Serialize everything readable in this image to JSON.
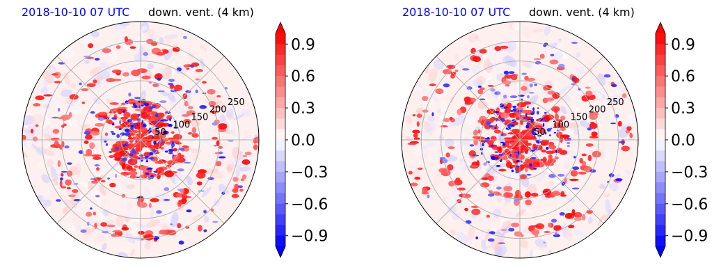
{
  "chart_data": [
    {
      "type": "heatmap",
      "projection": "polar",
      "title_left": "2018-10-10 07 UTC",
      "title_right": "down. vent. (4 km)",
      "radial_ticks": [
        "50",
        "100",
        "150",
        "200",
        "250"
      ],
      "radial_max": 300,
      "colorbar": {
        "range": [
          -1.0,
          1.0
        ],
        "ticks": [
          "0.9",
          "0.6",
          "0.3",
          "0.0",
          "−0.3",
          "−0.6",
          "−0.9"
        ],
        "colormap": "bwr",
        "extend": "both"
      }
    },
    {
      "type": "heatmap",
      "projection": "polar",
      "title_left": "2018-10-10 07 UTC",
      "title_right": "down. vent. (4 km)",
      "radial_ticks": [
        "50",
        "100",
        "150",
        "200",
        "250"
      ],
      "radial_max": 300,
      "colorbar": {
        "range": [
          -1.0,
          1.0
        ],
        "ticks": [
          "0.9",
          "0.6",
          "0.3",
          "0.0",
          "−0.3",
          "−0.6",
          "−0.9"
        ],
        "colormap": "bwr",
        "extend": "both"
      }
    }
  ],
  "colors": {
    "positive": "#ff0000",
    "negative": "#0000ff",
    "neutral": "#ffffff",
    "title_time": "#0000ff"
  }
}
